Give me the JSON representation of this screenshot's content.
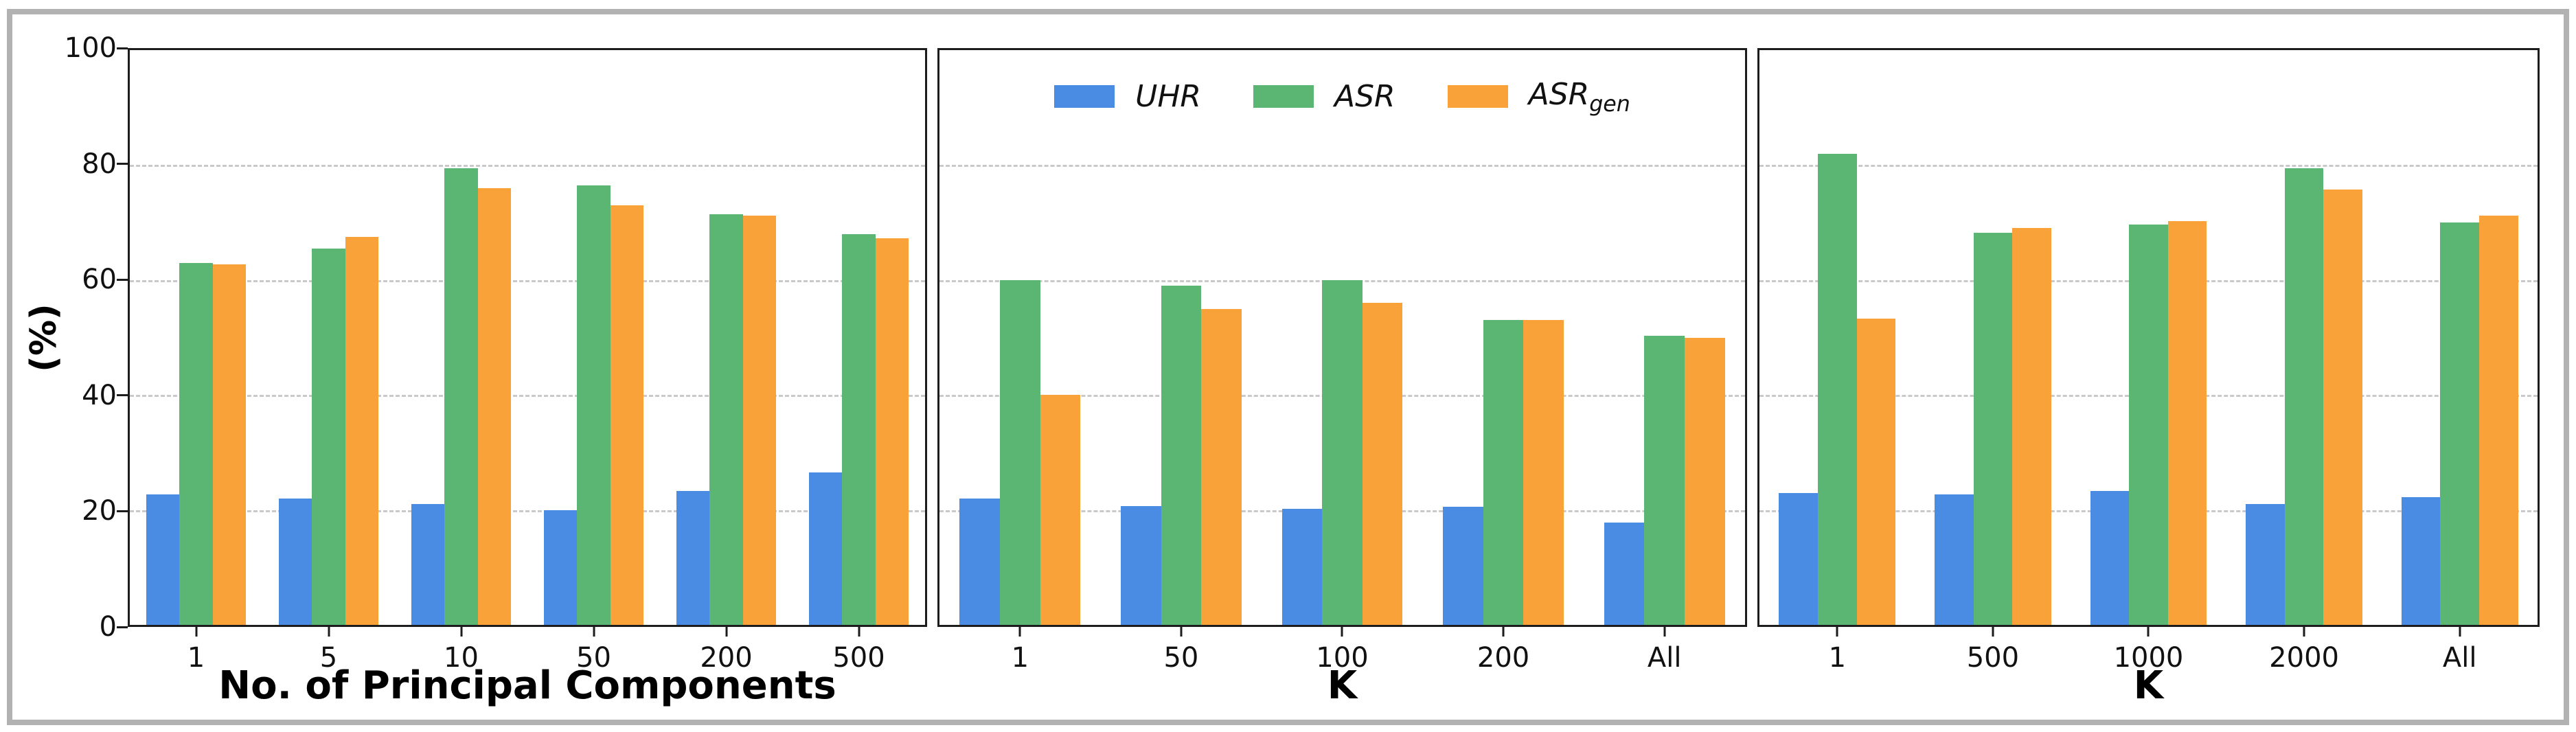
{
  "figure": {
    "y_axis_label": "(%)",
    "y_ticks": [
      "0",
      "20",
      "40",
      "60",
      "80",
      "100"
    ],
    "gridline_values": [
      20,
      40,
      60,
      80
    ],
    "ylim": [
      0,
      100
    ],
    "grid": "dashed horizontal",
    "background_color": "#ffffff",
    "frame_color": "#b2b2b2",
    "spine_color": "#1c1c1c",
    "gridline_color": "#c9c9c9"
  },
  "legend": {
    "position": "upper center of middle panel, horizontal, no frame",
    "entries": [
      {
        "label": "UHR",
        "sub": "",
        "color": "#4a8ce4"
      },
      {
        "label": "ASR",
        "sub": "",
        "color": "#5cb673"
      },
      {
        "label": "ASR",
        "sub": "gen",
        "color": "#f9a23a"
      }
    ]
  },
  "chart_data": [
    {
      "type": "bar",
      "title": "",
      "xlabel": "No. of Principal Components",
      "ylabel": "(%)",
      "ylim": [
        0,
        100
      ],
      "categories": [
        "1",
        "5",
        "10",
        "50",
        "200",
        "500"
      ],
      "series": [
        {
          "name": "UHR",
          "color": "#4a8ce4",
          "values": [
            22.7,
            22.0,
            21.0,
            20.0,
            23.3,
            26.5
          ]
        },
        {
          "name": "ASR",
          "color": "#5cb673",
          "values": [
            63.0,
            65.5,
            79.5,
            76.5,
            71.5,
            68.0
          ]
        },
        {
          "name": "ASR_gen",
          "color": "#f9a23a",
          "values": [
            62.7,
            67.5,
            76.0,
            73.0,
            71.2,
            67.3
          ]
        }
      ]
    },
    {
      "type": "bar",
      "title": "",
      "xlabel": "K",
      "ylabel": "(%)",
      "ylim": [
        0,
        100
      ],
      "categories": [
        "1",
        "50",
        "100",
        "200",
        "All"
      ],
      "series": [
        {
          "name": "UHR",
          "color": "#4a8ce4",
          "values": [
            22.0,
            20.7,
            20.2,
            20.5,
            17.8
          ]
        },
        {
          "name": "ASR",
          "color": "#5cb673",
          "values": [
            60.0,
            59.0,
            60.0,
            53.0,
            50.3
          ]
        },
        {
          "name": "ASR_gen",
          "color": "#f9a23a",
          "values": [
            40.0,
            55.0,
            56.0,
            53.0,
            50.0
          ]
        }
      ]
    },
    {
      "type": "bar",
      "title": "",
      "xlabel": "K",
      "ylabel": "(%)",
      "ylim": [
        0,
        100
      ],
      "categories": [
        "1",
        "500",
        "1000",
        "2000",
        "All"
      ],
      "series": [
        {
          "name": "UHR",
          "color": "#4a8ce4",
          "values": [
            23.0,
            22.7,
            23.3,
            21.0,
            22.2
          ]
        },
        {
          "name": "ASR",
          "color": "#5cb673",
          "values": [
            82.0,
            68.2,
            69.7,
            79.5,
            70.0
          ]
        },
        {
          "name": "ASR_gen",
          "color": "#f9a23a",
          "values": [
            53.3,
            69.0,
            70.3,
            75.7,
            71.2
          ]
        }
      ]
    }
  ]
}
